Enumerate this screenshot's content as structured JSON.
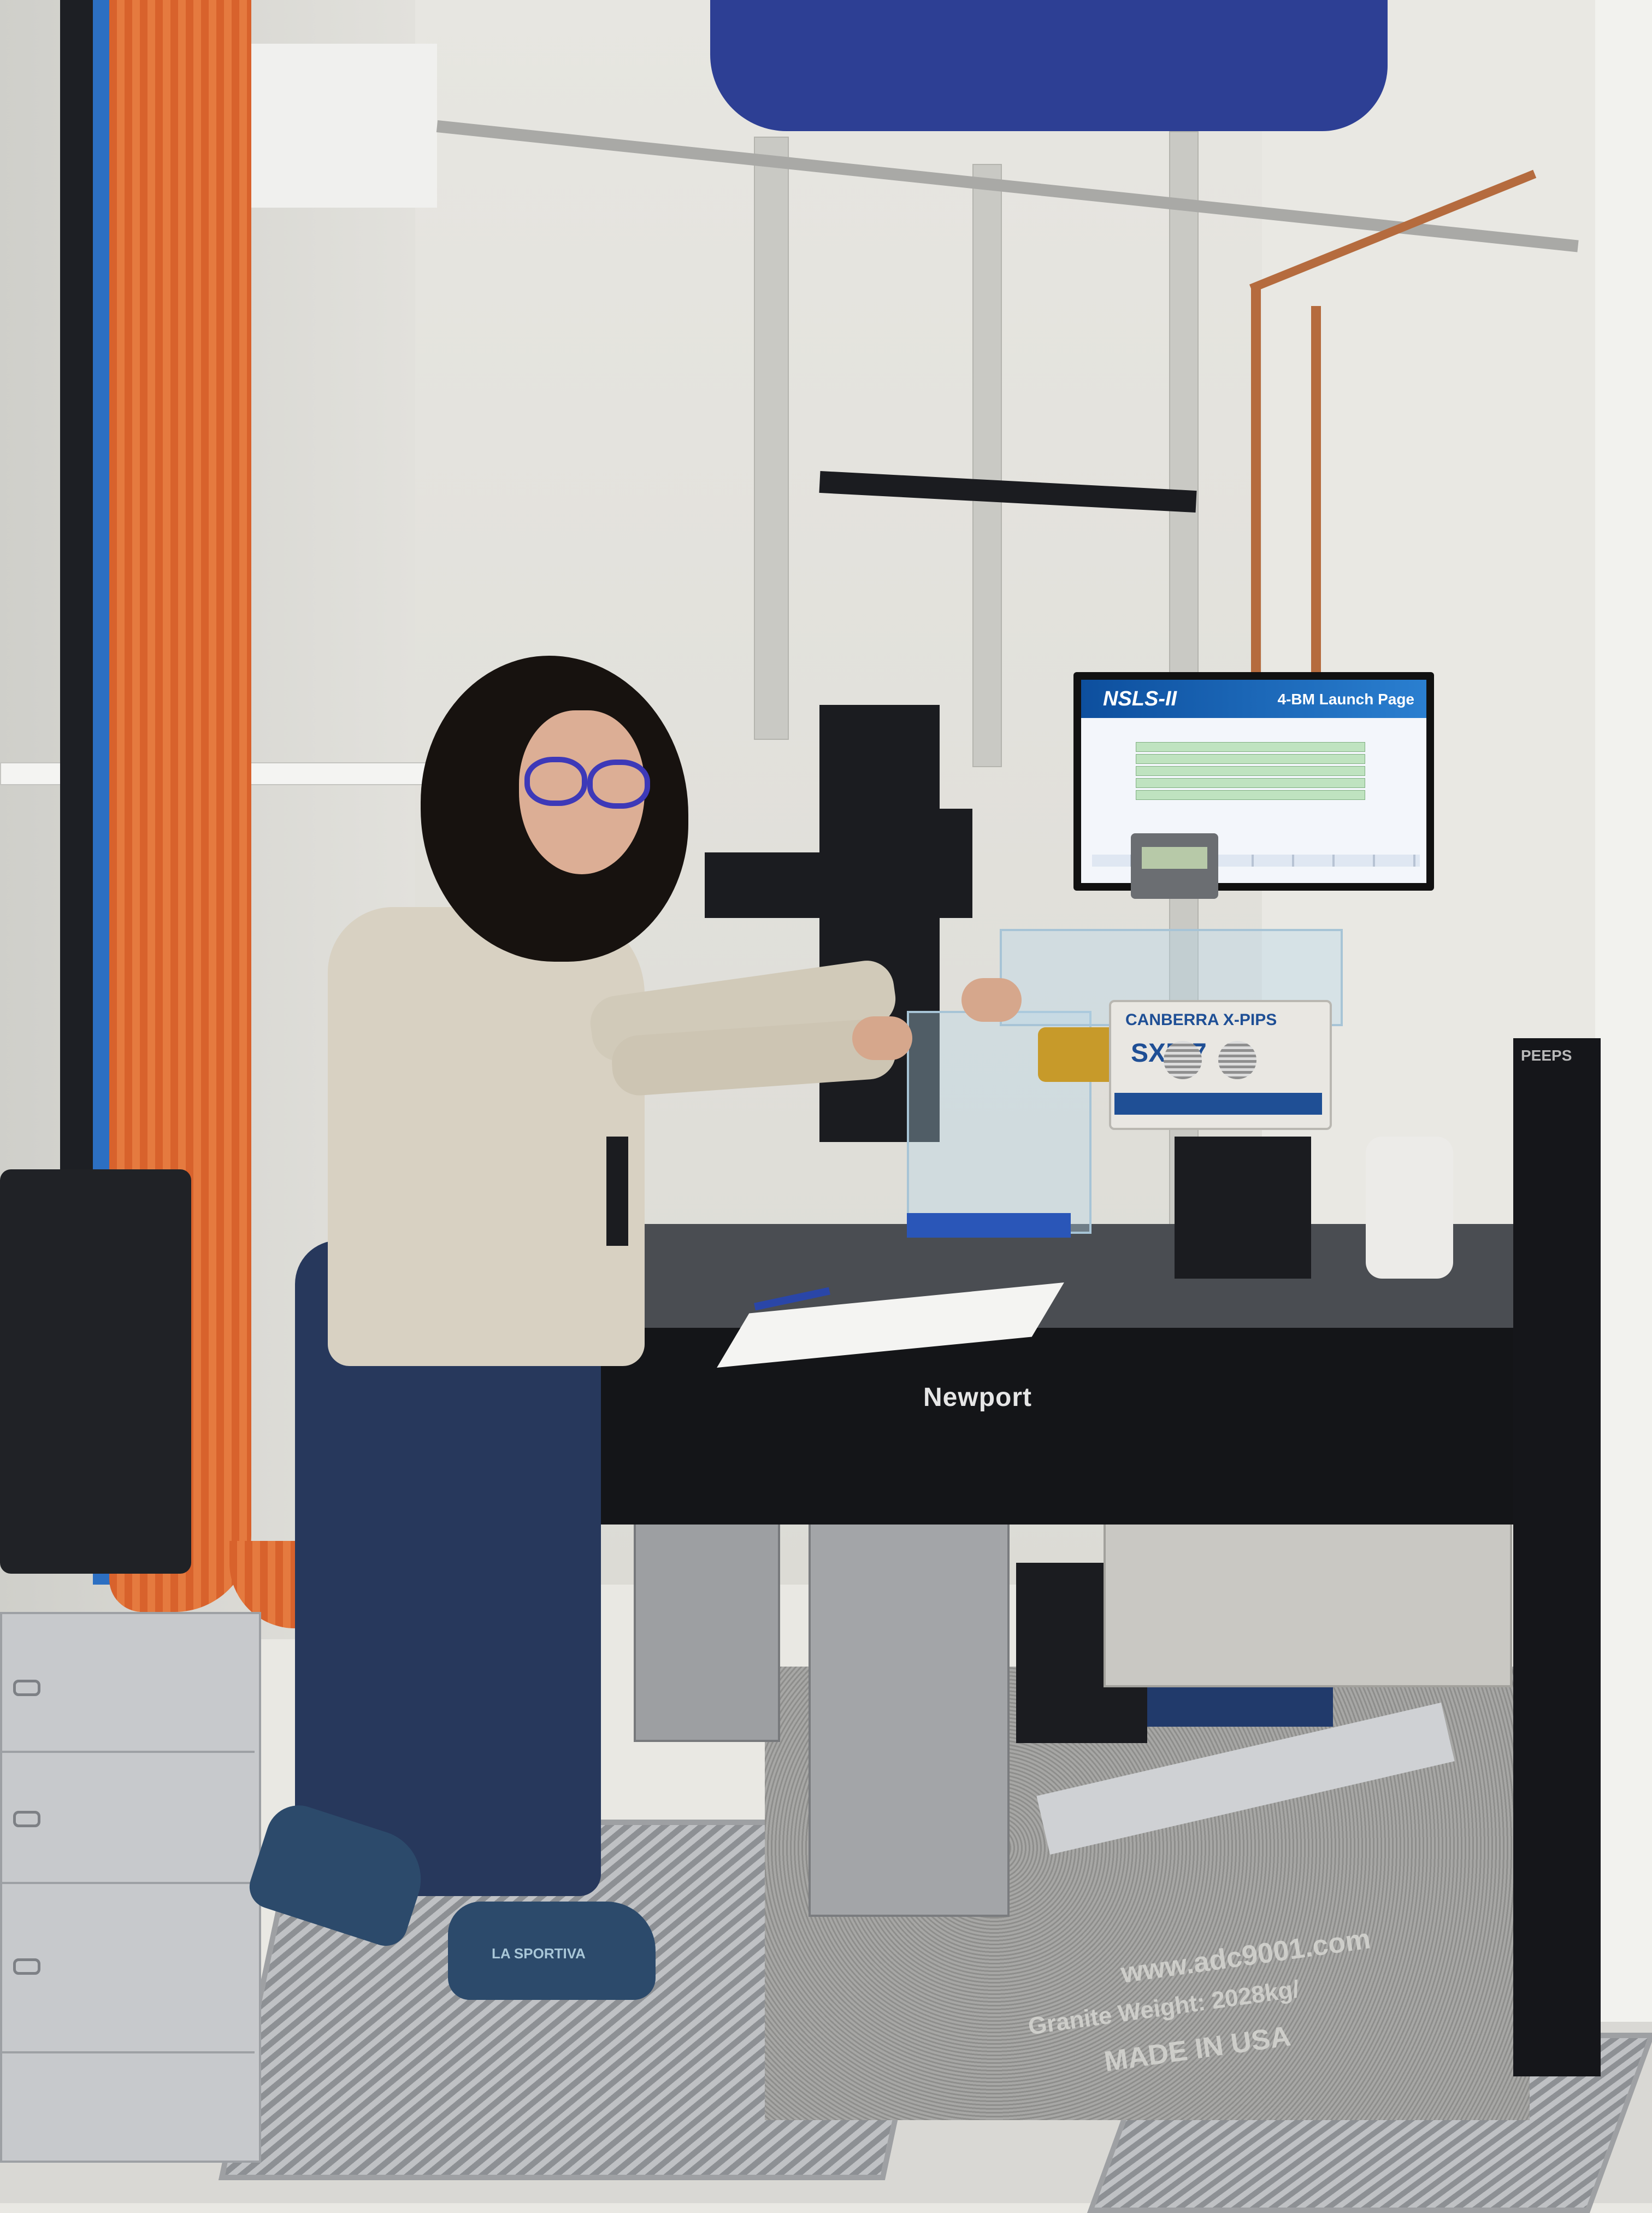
{
  "scene": {
    "monitor": {
      "logo_text": "NSLS-II",
      "title": "4-BM Launch Page"
    },
    "optical_table": {
      "brand_label": "Newport"
    },
    "detector": {
      "brand_text": "CANBERRA X-PIPS",
      "model_text": "SXD 7"
    },
    "granite_base": {
      "url_text": "www.adc9001.com",
      "weight_text": "Granite Weight: 2028kg/",
      "origin_text": "MADE IN USA"
    },
    "shoe": {
      "brand_text": "LA SPORTIVA"
    },
    "rack_label": "PEEPS",
    "colors": {
      "orange_cables": "#d8622c",
      "blue_cables": "#2c6fc2",
      "blue_duct": "#2d3f94",
      "glasses": "#3d39b8",
      "pants": "#27385c"
    }
  }
}
